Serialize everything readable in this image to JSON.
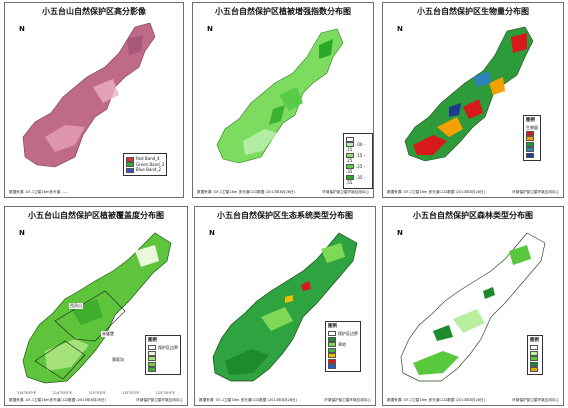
{
  "panels": [
    {
      "title": "小五台山自然保护区高分影像",
      "footer_left": "数据来源: GF-1卫星16m多光谱 ......",
      "footer_right": "",
      "legend": {
        "title": "",
        "items": [
          {
            "label": "Red    Band_4",
            "color": "#e03030"
          },
          {
            "label": "Green  Band_3",
            "color": "#30b030"
          },
          {
            "label": "Blue   Band_2",
            "color": "#3050e0"
          }
        ]
      },
      "map_fill": "#c06a8a"
    },
    {
      "title": "小五台自然保护区植被增强指数分布图",
      "footer_left": "数据来源: GF-1卫星16m 多光谱CCD数据 (2013年8月26日)",
      "footer_right": "环境保护部卫星环境应用中心",
      "legend": {
        "title": "",
        "items": [
          {
            "label": "",
            "color": "#ffffff"
          },
          {
            "label": ".00 - .15",
            "color": "#b8f0a8"
          },
          {
            "label": ".15 - .25",
            "color": "#88e070"
          },
          {
            "label": ".25 - .35",
            "color": "#58cc48"
          },
          {
            "label": ".35 - .55",
            "color": "#2aa82a"
          }
        ]
      },
      "map_fill": "#7ddc60"
    },
    {
      "title": "小五台自然保护区生物量分布图",
      "footer_left": "数据来源: GF-1卫星16m 多光谱CCD数据 (2013年8月26日)",
      "footer_right": "环境保护部卫星环境应用中心",
      "legend": {
        "title": "图例",
        "subtitle": "生物量",
        "items": [
          {
            "label": "",
            "color": "#d7191c"
          },
          {
            "label": "",
            "color": "#f4a000"
          },
          {
            "label": "",
            "color": "#1a9641"
          },
          {
            "label": "",
            "color": "#2b83ba"
          },
          {
            "label": "",
            "color": "#1f3b8f"
          }
        ]
      },
      "map_fill": "#2e9b3a"
    },
    {
      "title": "小五台山自然保护区植被覆盖度分布图",
      "footer_left": "数据来源: GF-1卫星16m多光谱CCD数据 (2013年8月26日)",
      "footer_right": "环境保护部卫星环境应用中心",
      "legend": {
        "title": "图例",
        "items": [
          {
            "label": "保护区边界",
            "color": "#ffffff"
          },
          {
            "label": "",
            "color": "#e8f8d8"
          },
          {
            "label": "",
            "color": "#a6e27c"
          },
          {
            "label": "",
            "color": "#6fcf4a"
          },
          {
            "label": "",
            "color": "#3fae2e"
          }
        ]
      },
      "zones": [
        "西灵山",
        "赤崖堡",
        "郑家沟"
      ],
      "map_fill": "#5ec43c"
    },
    {
      "title": "小五台自然保护区生态系统类型分布图",
      "footer_left": "数据来源: GF-1卫星16m 多光谱CCD数据 (2013年8月26日)",
      "footer_right": "环境保护部卫星环境应用中心",
      "legend": {
        "title": "图例",
        "items": [
          {
            "label": "保护区边界",
            "color": "#ffffff"
          },
          {
            "label": "",
            "color": "#1e8a2e"
          },
          {
            "label": "草地",
            "color": "#7ed957"
          },
          {
            "label": "",
            "color": "#3cb84a"
          },
          {
            "label": "",
            "color": "#f0c000"
          },
          {
            "label": "",
            "color": "#d7191c"
          },
          {
            "label": "",
            "color": "#2b5cc6"
          }
        ]
      },
      "map_fill": "#2fa33f"
    },
    {
      "title": "小五台自然保护区森林类型分布图",
      "footer_left": "数据来源: GF-1卫星16m 多光谱CCD数据 (2013年8月26日)",
      "footer_right": "环境保护部卫星环境应用中心",
      "legend": {
        "title": "图例",
        "items": [
          {
            "label": "",
            "color": "#ffffff"
          },
          {
            "label": "",
            "color": "#b8f0a0"
          },
          {
            "label": "",
            "color": "#58c83c"
          },
          {
            "label": "",
            "color": "#1e8a2e"
          },
          {
            "label": "",
            "color": "#e8a000"
          }
        ]
      },
      "map_fill": "#9de07e"
    }
  ],
  "north_label": "N",
  "lon_ticks": [
    "114°50'0\"E",
    "114°55'0\"E",
    "115°0'0\"E",
    "115°5'0\"E",
    "115°10'0\"E"
  ]
}
